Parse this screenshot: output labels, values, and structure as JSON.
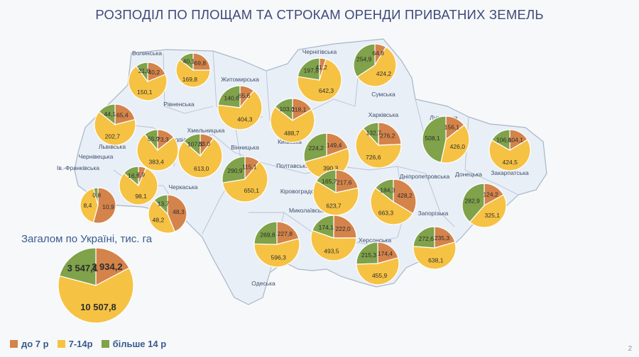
{
  "title": "РОЗПОДІЛ ПО ПЛОЩАМ ТА СТРОКАМ ОРЕНДИ ПРИВАТНИХ ЗЕМЕЛЬ",
  "total": {
    "label": "Загалом по Україні, тис. га",
    "values": [
      "2 934,2",
      "10 507,8",
      "3 547,1"
    ],
    "nums": [
      2934.2,
      10507.8,
      3547.1
    ]
  },
  "legend": [
    {
      "label": "до 7 р",
      "color": "#d4834a"
    },
    {
      "label": "7-14р",
      "color": "#f6c244"
    },
    {
      "label": "більше 14 р",
      "color": "#7fa24a"
    }
  ],
  "page_number": "2",
  "region_labels": [
    "Волинська",
    "Рівненська",
    "Житомирська",
    "Чернігівська",
    "Сумська",
    "Львівська",
    "Тернопільська",
    "Хмельницька",
    "Вінницька",
    "Київська",
    "Полтавська",
    "Харківська",
    "Луганська",
    "Закарпатська",
    "Ів.-Франківська",
    "Чернівецька",
    "Черкаська",
    "Кіровоградська",
    "Дніпропетровська",
    "Донецька",
    "Миколаївська",
    "Запорізька",
    "Херсонська",
    "Одеська"
  ],
  "chart_data": {
    "type": "pie",
    "series_order": [
      "до 7 р",
      "7-14р",
      "більше 14 р"
    ],
    "pies": [
      {
        "region": "Волинська",
        "values": [
          40.2,
          150.1,
          21.8
        ],
        "labels": [
          "40,2",
          "150,1",
          "21,8"
        ]
      },
      {
        "region": "Рівненська",
        "values": [
          69.8,
          169.8,
          40.1
        ],
        "labels": [
          "69,8",
          "169,8",
          "40,1"
        ]
      },
      {
        "region": "Житомирська",
        "values": [
          65.6,
          404.3,
          140.6
        ],
        "labels": [
          "65,6",
          "404,3",
          "140,6"
        ]
      },
      {
        "region": "Чернігівська",
        "values": [
          41.2,
          642.3,
          197.8
        ],
        "labels": [
          "41,2",
          "642,3",
          "197,8"
        ]
      },
      {
        "region": "Сумська",
        "values": [
          64.8,
          424.2,
          254.9
        ],
        "labels": [
          "64,8",
          "424,2",
          "254,9"
        ]
      },
      {
        "region": "Львівська",
        "values": [
          65.4,
          202.7,
          44.1
        ],
        "labels": [
          "65,4",
          "202,7",
          "44,1"
        ]
      },
      {
        "region": "Тернопільська",
        "values": [
          73.3,
          383.4,
          55.9
        ],
        "labels": [
          "73,3",
          "383,4",
          "55,9"
        ]
      },
      {
        "region": "Хмельницька",
        "values": [
          83.0,
          613.0,
          107.3
        ],
        "labels": [
          "83,0",
          "613,0",
          "107,3"
        ]
      },
      {
        "region": "Вінницька",
        "values": [
          115.1,
          650.1,
          290.9
        ],
        "labels": [
          "115,1",
          "650,1",
          "290,9"
        ]
      },
      {
        "region": "Київська",
        "values": [
          118.1,
          488.7,
          103.0
        ],
        "labels": [
          "118,1",
          "488,7",
          "103,0"
        ]
      },
      {
        "region": "Черкаська",
        "values": [
          149.4,
          390.3,
          224.2
        ],
        "labels": [
          "149,4",
          "390,3",
          "224,2"
        ]
      },
      {
        "region": "Полтавська",
        "values": [
          276.2,
          726.6,
          132.7
        ],
        "labels": [
          "276,2",
          "726,6",
          "132,7"
        ]
      },
      {
        "region": "Харківська",
        "values": [
          156.1,
          426.0,
          508.1
        ],
        "labels": [
          "156,1",
          "426,0",
          "508,1"
        ]
      },
      {
        "region": "Луганська",
        "values": [
          104.1,
          424.5,
          106.6
        ],
        "labels": [
          "104,1",
          "424,5",
          "106,6"
        ]
      },
      {
        "region": "Закарпатська",
        "values": [
          10.9,
          8.4,
          0.8
        ],
        "labels": [
          "10,9",
          "8,4",
          "0,8"
        ]
      },
      {
        "region": "Ів.-Франківська",
        "values": [
          7.9,
          98.1,
          16.9
        ],
        "labels": [
          "7,9",
          "98,1",
          "16,9"
        ]
      },
      {
        "region": "Чернівецька",
        "values": [
          48.3,
          48.2,
          13.7
        ],
        "labels": [
          "48,3",
          "48,2",
          "13,7"
        ]
      },
      {
        "region": "Кіровоградська",
        "values": [
          217.6,
          623.7,
          165.7
        ],
        "labels": [
          "217,6",
          "623,7",
          "165,7"
        ]
      },
      {
        "region": "Дніпропетровська",
        "values": [
          428.2,
          663.3,
          184.3
        ],
        "labels": [
          "428,2",
          "663,3",
          "184,3"
        ]
      },
      {
        "region": "Донецька",
        "values": [
          124.2,
          325.1,
          282.9
        ],
        "labels": [
          "124,2",
          "325,1",
          "282,9"
        ]
      },
      {
        "region": "Миколаївська",
        "values": [
          222.0,
          493.5,
          174.1
        ],
        "labels": [
          "222,0",
          "493,5",
          "174,1"
        ]
      },
      {
        "region": "Запорізька",
        "values": [
          235.3,
          638.1,
          272.6
        ],
        "labels": [
          "235,3",
          "638,1",
          "272,6"
        ]
      },
      {
        "region": "Херсонська",
        "values": [
          174.4,
          455.9,
          215.3
        ],
        "labels": [
          "174,4",
          "455,9",
          "215,3"
        ]
      },
      {
        "region": "Одеська",
        "values": [
          227.8,
          596.3,
          269.8
        ],
        "labels": [
          "227,8",
          "596,3",
          "269,8"
        ]
      }
    ]
  }
}
